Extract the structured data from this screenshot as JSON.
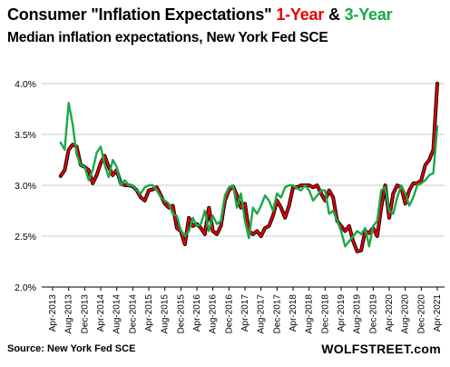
{
  "title": {
    "part1": "Consumer \"Inflation Expectations\"",
    "part2": "1-Year",
    "part3": "&",
    "part4": "3-Year"
  },
  "subtitle": "Median inflation expectations, New York Fed SCE",
  "source": "Source: New York Fed SCE",
  "brand": "WOLFSTREET.com",
  "colors": {
    "one_year": "#e60000",
    "three_year": "#1aa84a",
    "one_year_shadow": "#000000"
  },
  "chart_data": {
    "type": "line",
    "ylim": [
      2.0,
      4.0
    ],
    "yticks": [
      "4.0%",
      "3.5%",
      "3.0%",
      "2.5%",
      "2.0%"
    ],
    "ytick_values": [
      4.0,
      3.5,
      3.0,
      2.5,
      2.0
    ],
    "xlim": [
      "2013-06",
      "2021-04"
    ],
    "xtick_labels": [
      "Apr-2013",
      "Aug-2013",
      "Dec-2013",
      "Apr-2014",
      "Aug-2014",
      "Dec-2014",
      "Apr-2015",
      "Aug-2015",
      "Dec-2015",
      "Apr-2016",
      "Aug-2016",
      "Dec-2016",
      "Apr-2017",
      "Aug-2017",
      "Dec-2017",
      "Apr-2018",
      "Aug-2018",
      "Dec-2018",
      "Apr-2019",
      "Aug-2019",
      "Dec-2019",
      "Apr-2020",
      "Aug-2020",
      "Dec-2020",
      "Apr-2021"
    ],
    "xtick_months": [
      "2013-04",
      "2013-08",
      "2013-12",
      "2014-04",
      "2014-08",
      "2014-12",
      "2015-04",
      "2015-08",
      "2015-12",
      "2016-04",
      "2016-08",
      "2016-12",
      "2017-04",
      "2017-08",
      "2017-12",
      "2018-04",
      "2018-08",
      "2018-12",
      "2019-04",
      "2019-08",
      "2019-12",
      "2020-04",
      "2020-08",
      "2020-12",
      "2021-04"
    ],
    "series": [
      {
        "key": "one_year",
        "start": "2013-06",
        "values": [
          3.09,
          3.15,
          3.35,
          3.4,
          3.38,
          3.2,
          3.18,
          3.15,
          3.02,
          3.1,
          3.22,
          3.29,
          3.18,
          3.1,
          3.15,
          3.02,
          3.0,
          3.0,
          2.99,
          2.95,
          2.88,
          2.85,
          2.95,
          2.96,
          2.98,
          2.9,
          2.82,
          2.78,
          2.8,
          2.58,
          2.55,
          2.42,
          2.68,
          2.6,
          2.62,
          2.58,
          2.52,
          2.78,
          2.55,
          2.52,
          2.6,
          2.85,
          2.95,
          2.99,
          2.9,
          2.78,
          2.82,
          2.55,
          2.52,
          2.55,
          2.5,
          2.58,
          2.6,
          2.7,
          2.85,
          2.78,
          2.68,
          2.8,
          2.98,
          2.98,
          3.0,
          3.0,
          3.0,
          2.98,
          3.0,
          2.92,
          2.85,
          2.95,
          2.88,
          2.65,
          2.6,
          2.55,
          2.6,
          2.45,
          2.35,
          2.36,
          2.55,
          2.53,
          2.58,
          2.5,
          2.78,
          3.0,
          2.68,
          2.92,
          3.0,
          2.98,
          2.82,
          2.95,
          3.02,
          3.02,
          3.05,
          3.2,
          3.25,
          3.35,
          4.0
        ]
      },
      {
        "key": "three_year",
        "start": "2013-06",
        "values": [
          3.42,
          3.35,
          3.81,
          3.6,
          3.3,
          3.2,
          3.18,
          3.05,
          3.15,
          3.32,
          3.38,
          3.2,
          3.08,
          3.25,
          3.18,
          3.0,
          3.05,
          3.0,
          3.0,
          2.95,
          2.92,
          2.98,
          3.0,
          3.0,
          2.95,
          2.88,
          2.85,
          2.82,
          2.72,
          2.7,
          2.56,
          2.5,
          2.55,
          2.68,
          2.6,
          2.62,
          2.75,
          2.55,
          2.7,
          2.62,
          2.65,
          2.9,
          2.98,
          3.0,
          2.78,
          2.92,
          2.65,
          2.48,
          2.78,
          2.72,
          2.8,
          2.9,
          2.85,
          2.75,
          2.92,
          2.88,
          2.98,
          3.0,
          3.0,
          2.97,
          2.95,
          3.0,
          2.95,
          2.85,
          2.9,
          2.95,
          2.95,
          2.72,
          2.75,
          2.65,
          2.55,
          2.4,
          2.45,
          2.5,
          2.55,
          2.52,
          2.58,
          2.4,
          2.6,
          2.65,
          2.95,
          2.98,
          2.75,
          2.72,
          2.88,
          3.0,
          2.92,
          2.8,
          2.88,
          3.0,
          3.02,
          3.05,
          3.1,
          3.12,
          3.58
        ]
      }
    ]
  }
}
